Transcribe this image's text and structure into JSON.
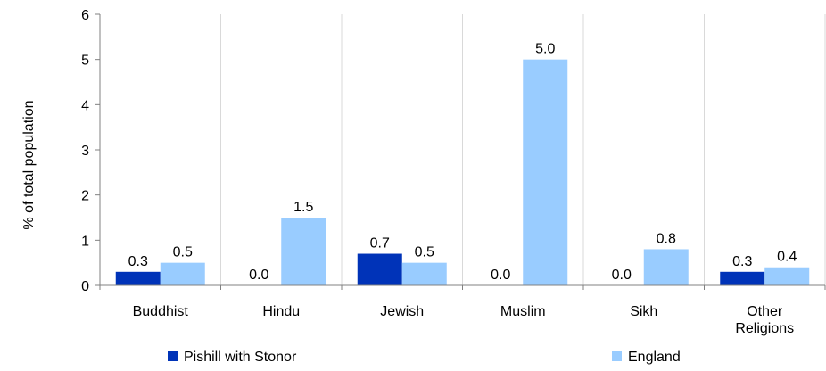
{
  "chart_data": {
    "type": "bar",
    "ylabel": "% of total population",
    "ylim": [
      0,
      6
    ],
    "yticks": [
      0,
      1,
      2,
      3,
      4,
      5,
      6
    ],
    "grid": "vertical separators between categories",
    "legend_placement": "bottom",
    "categories": [
      [
        "Buddhist"
      ],
      [
        "Hindu"
      ],
      [
        "Jewish"
      ],
      [
        "Muslim"
      ],
      [
        "Sikh"
      ],
      [
        "Other",
        "Religions"
      ]
    ],
    "series": [
      {
        "name": "Pishill with Stonor",
        "color": "#0033b8",
        "values": [
          0.3,
          0.0,
          0.7,
          0.0,
          0.0,
          0.3
        ],
        "labels": [
          "0.3",
          "0.0",
          "0.7",
          "0.0",
          "0.0",
          "0.3"
        ]
      },
      {
        "name": "England",
        "color": "#99ccff",
        "values": [
          0.5,
          1.5,
          0.5,
          5.0,
          0.8,
          0.4
        ],
        "labels": [
          "0.5",
          "1.5",
          "0.5",
          "5.0",
          "0.8",
          "0.4"
        ]
      }
    ]
  }
}
